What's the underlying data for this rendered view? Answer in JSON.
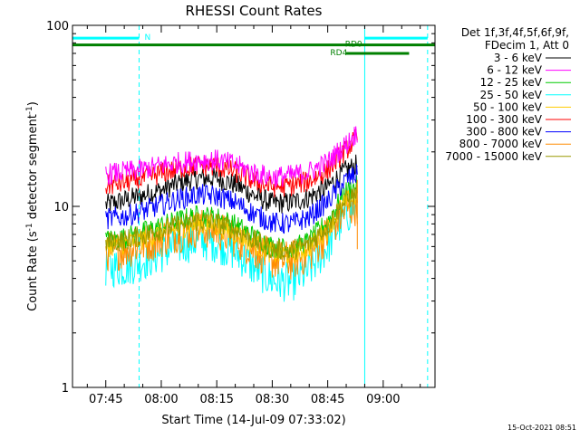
{
  "chart_data": {
    "type": "line",
    "title": "RHESSI Count Rates",
    "xlabel": "Start Time (14-Jul-09 07:33:02)",
    "ylabel_prefix": "Count Rate (s",
    "ylabel_sup": "-1",
    "ylabel_suffix": " detector segment",
    "ylabel_sup2": "-1",
    "ylabel_close": ")",
    "yscale": "log",
    "ylim": [
      1,
      100
    ],
    "xlim": [
      "07:36",
      "09:14"
    ],
    "yticks": [
      {
        "value": 1,
        "label": "1"
      },
      {
        "value": 10,
        "label": "10"
      },
      {
        "value": 100,
        "label": "100"
      }
    ],
    "xticks": [
      {
        "value": "07:45",
        "label": "07:45"
      },
      {
        "value": "08:00",
        "label": "08:00"
      },
      {
        "value": "08:15",
        "label": "08:15"
      },
      {
        "value": "08:30",
        "label": "08:30"
      },
      {
        "value": "08:45",
        "label": "08:45"
      },
      {
        "value": "09:00",
        "label": "09:00"
      }
    ],
    "legend_header": [
      "Det 1f,3f,4f,5f,6f,9f,",
      "FDecim 1, Att 0"
    ],
    "legend_position": "right",
    "timestamp": "15-Oct-2021 08:51",
    "time_x": [
      "07:45",
      "07:50",
      "07:55",
      "08:00",
      "08:05",
      "08:10",
      "08:15",
      "08:20",
      "08:25",
      "08:30",
      "08:35",
      "08:40",
      "08:45",
      "08:50",
      "08:53"
    ],
    "series": [
      {
        "name": "3 - 6 keV",
        "color": "#000000",
        "values": [
          10.2,
          10.8,
          11.5,
          12.3,
          13.5,
          14.3,
          14.3,
          13.2,
          11.5,
          10.4,
          10.5,
          11.2,
          12.8,
          15.8,
          17.0
        ]
      },
      {
        "name": "6 - 12 keV",
        "color": "#ff00ff",
        "values": [
          15.0,
          15.5,
          16.0,
          16.8,
          17.5,
          18.0,
          18.0,
          17.0,
          15.3,
          14.5,
          14.8,
          15.5,
          17.5,
          22.0,
          25.5
        ]
      },
      {
        "name": "12 - 25 keV",
        "color": "#00cc00",
        "values": [
          6.5,
          6.7,
          7.2,
          7.8,
          8.4,
          8.9,
          8.7,
          7.9,
          6.8,
          6.0,
          5.8,
          6.4,
          8.2,
          12.0,
          13.0
        ]
      },
      {
        "name": "25 - 50 keV",
        "color": "#00ffff",
        "values": [
          4.6,
          4.6,
          5.0,
          5.5,
          6.1,
          6.5,
          6.3,
          5.6,
          4.6,
          3.9,
          3.8,
          4.4,
          6.0,
          9.0,
          10.0
        ]
      },
      {
        "name": "50 - 100 keV",
        "color": "#ffcc00",
        "values": [
          6.0,
          6.2,
          6.6,
          7.1,
          7.6,
          8.0,
          7.8,
          7.1,
          6.2,
          5.5,
          5.4,
          5.9,
          7.5,
          10.6,
          11.5
        ]
      },
      {
        "name": "100 - 300 keV",
        "color": "#ff0000",
        "values": [
          13.0,
          13.5,
          14.2,
          15.2,
          16.2,
          16.8,
          16.6,
          15.5,
          13.8,
          12.8,
          13.0,
          13.8,
          15.8,
          20.5,
          24.0
        ]
      },
      {
        "name": "300 - 800 keV",
        "color": "#0000ff",
        "values": [
          8.5,
          8.8,
          9.4,
          10.2,
          11.0,
          11.6,
          11.4,
          10.5,
          9.1,
          8.1,
          8.0,
          8.7,
          10.6,
          14.0,
          15.0
        ]
      },
      {
        "name": "800 - 7000 keV",
        "color": "#ff8c00",
        "values": [
          5.6,
          5.8,
          6.2,
          6.7,
          7.2,
          7.6,
          7.4,
          6.7,
          5.8,
          5.1,
          5.0,
          5.5,
          7.0,
          9.6,
          10.2
        ]
      },
      {
        "name": "7000 - 15000 keV",
        "color": "#999900",
        "values": [
          6.3,
          6.5,
          6.9,
          7.4,
          7.9,
          8.3,
          8.1,
          7.4,
          6.5,
          5.8,
          5.7,
          6.2,
          7.8,
          10.8,
          11.8
        ]
      }
    ],
    "flags": [
      {
        "label": "N",
        "color": "#00ffff",
        "level": 85,
        "segments": [
          [
            "07:36",
            "07:54"
          ],
          [
            "08:55",
            "09:12"
          ]
        ]
      },
      {
        "label": "RD0",
        "color": "#008000",
        "level": 78,
        "segments": [
          [
            "07:36",
            "09:14"
          ]
        ]
      },
      {
        "label": "RD4",
        "color": "#008000",
        "level": 70,
        "segments": [
          [
            "08:50",
            "09:07"
          ]
        ]
      }
    ],
    "vlines": [
      {
        "time": "07:36",
        "color": "#00ffff",
        "style": "solid"
      },
      {
        "time": "07:54",
        "color": "#00ffff",
        "style": "dashed"
      },
      {
        "time": "08:55",
        "color": "#00ffff",
        "style": "solid"
      },
      {
        "time": "09:12",
        "color": "#00ffff",
        "style": "dashed"
      }
    ]
  }
}
